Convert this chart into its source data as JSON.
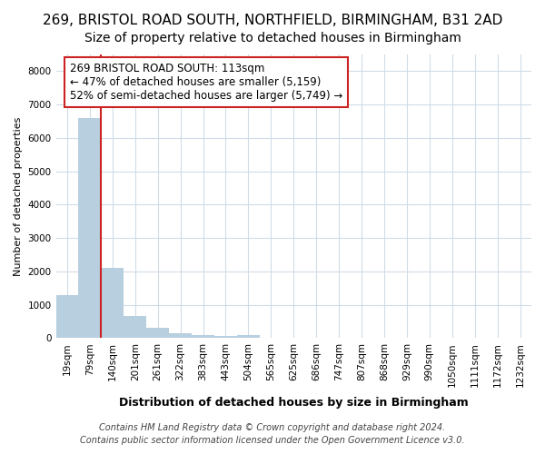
{
  "title1": "269, BRISTOL ROAD SOUTH, NORTHFIELD, BIRMINGHAM, B31 2AD",
  "title2": "Size of property relative to detached houses in Birmingham",
  "xlabel": "Distribution of detached houses by size in Birmingham",
  "ylabel": "Number of detached properties",
  "categories": [
    "19sqm",
    "79sqm",
    "140sqm",
    "201sqm",
    "261sqm",
    "322sqm",
    "383sqm",
    "443sqm",
    "504sqm",
    "565sqm",
    "625sqm",
    "686sqm",
    "747sqm",
    "807sqm",
    "868sqm",
    "929sqm",
    "990sqm",
    "1050sqm",
    "1111sqm",
    "1172sqm",
    "1232sqm"
  ],
  "values": [
    1300,
    6600,
    2100,
    650,
    300,
    150,
    100,
    50,
    100,
    0,
    0,
    0,
    0,
    0,
    0,
    0,
    0,
    0,
    0,
    0,
    0
  ],
  "bar_color": "#b8cfe0",
  "vline_x_index": 1,
  "annotation_line1": "269 BRISTOL ROAD SOUTH: 113sqm",
  "annotation_line2": "← 47% of detached houses are smaller (5,159)",
  "annotation_line3": "52% of semi-detached houses are larger (5,749) →",
  "annotation_border_color": "#cc2222",
  "ylim": [
    0,
    8500
  ],
  "yticks": [
    0,
    1000,
    2000,
    3000,
    4000,
    5000,
    6000,
    7000,
    8000
  ],
  "footer1": "Contains HM Land Registry data © Crown copyright and database right 2024.",
  "footer2": "Contains public sector information licensed under the Open Government Licence v3.0.",
  "bg_color": "#ffffff",
  "grid_color": "#d0dce8",
  "title1_fontsize": 11,
  "title2_fontsize": 10,
  "xlabel_fontsize": 9,
  "ylabel_fontsize": 8,
  "tick_fontsize": 7.5,
  "annot_fontsize": 8.5,
  "footer_fontsize": 7
}
